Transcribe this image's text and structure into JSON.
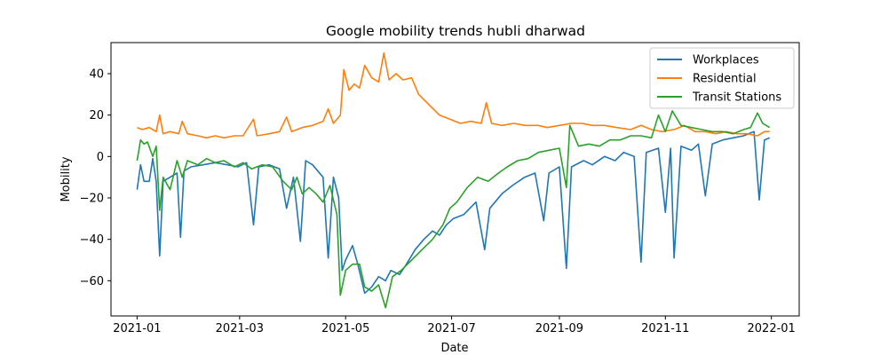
{
  "chart_data": {
    "type": "line",
    "title": "Google mobility trends hubli dharwad",
    "xlabel": "Date",
    "ylabel": "Mobility",
    "xlim": [
      "2020-12-17",
      "2022-01-17"
    ],
    "ylim": [
      -77,
      55
    ],
    "x_ticks": [
      "2021-01",
      "2021-03",
      "2021-05",
      "2021-07",
      "2021-09",
      "2021-11",
      "2022-01"
    ],
    "y_ticks": [
      -60,
      -40,
      -20,
      0,
      20,
      40
    ],
    "grid": false,
    "legend_position": "top-right",
    "series": [
      {
        "name": "Workplaces",
        "color": "#1f77b4",
        "points": [
          [
            "2021-01-01",
            -16
          ],
          [
            "2021-01-03",
            -4
          ],
          [
            "2021-01-05",
            -12
          ],
          [
            "2021-01-08",
            -12
          ],
          [
            "2021-01-10",
            -1
          ],
          [
            "2021-01-12",
            -12
          ],
          [
            "2021-01-14",
            -48
          ],
          [
            "2021-01-16",
            -12
          ],
          [
            "2021-01-20",
            -10
          ],
          [
            "2021-01-24",
            -8
          ],
          [
            "2021-01-26",
            -39
          ],
          [
            "2021-01-28",
            -7
          ],
          [
            "2021-02-01",
            -5
          ],
          [
            "2021-02-08",
            -4
          ],
          [
            "2021-02-15",
            -3
          ],
          [
            "2021-02-22",
            -4
          ],
          [
            "2021-02-28",
            -5
          ],
          [
            "2021-03-05",
            -3
          ],
          [
            "2021-03-09",
            -33
          ],
          [
            "2021-03-12",
            -5
          ],
          [
            "2021-03-18",
            -4
          ],
          [
            "2021-03-24",
            -6
          ],
          [
            "2021-03-28",
            -25
          ],
          [
            "2021-04-01",
            -10
          ],
          [
            "2021-04-05",
            -41
          ],
          [
            "2021-04-08",
            -2
          ],
          [
            "2021-04-12",
            -4
          ],
          [
            "2021-04-18",
            -10
          ],
          [
            "2021-04-21",
            -49
          ],
          [
            "2021-04-24",
            -10
          ],
          [
            "2021-04-27",
            -20
          ],
          [
            "2021-04-29",
            -55
          ],
          [
            "2021-05-01",
            -50
          ],
          [
            "2021-05-05",
            -43
          ],
          [
            "2021-05-08",
            -52
          ],
          [
            "2021-05-12",
            -66
          ],
          [
            "2021-05-16",
            -63
          ],
          [
            "2021-05-20",
            -58
          ],
          [
            "2021-05-24",
            -60
          ],
          [
            "2021-05-27",
            -55
          ],
          [
            "2021-06-01",
            -57
          ],
          [
            "2021-06-05",
            -52
          ],
          [
            "2021-06-10",
            -45
          ],
          [
            "2021-06-15",
            -40
          ],
          [
            "2021-06-20",
            -36
          ],
          [
            "2021-06-24",
            -38
          ],
          [
            "2021-06-28",
            -33
          ],
          [
            "2021-07-02",
            -30
          ],
          [
            "2021-07-08",
            -28
          ],
          [
            "2021-07-15",
            -22
          ],
          [
            "2021-07-20",
            -45
          ],
          [
            "2021-07-23",
            -25
          ],
          [
            "2021-07-30",
            -18
          ],
          [
            "2021-08-05",
            -14
          ],
          [
            "2021-08-12",
            -10
          ],
          [
            "2021-08-18",
            -8
          ],
          [
            "2021-08-23",
            -31
          ],
          [
            "2021-08-26",
            -8
          ],
          [
            "2021-09-01",
            -5
          ],
          [
            "2021-09-05",
            -54
          ],
          [
            "2021-09-08",
            -5
          ],
          [
            "2021-09-15",
            -2
          ],
          [
            "2021-09-20",
            -4
          ],
          [
            "2021-09-27",
            0
          ],
          [
            "2021-10-03",
            -2
          ],
          [
            "2021-10-08",
            2
          ],
          [
            "2021-10-14",
            0
          ],
          [
            "2021-10-18",
            -51
          ],
          [
            "2021-10-21",
            2
          ],
          [
            "2021-10-28",
            4
          ],
          [
            "2021-11-01",
            -27
          ],
          [
            "2021-11-04",
            4
          ],
          [
            "2021-11-06",
            -49
          ],
          [
            "2021-11-10",
            5
          ],
          [
            "2021-11-16",
            3
          ],
          [
            "2021-11-20",
            6
          ],
          [
            "2021-11-24",
            -19
          ],
          [
            "2021-11-28",
            6
          ],
          [
            "2021-12-04",
            8
          ],
          [
            "2021-12-10",
            9
          ],
          [
            "2021-12-16",
            10
          ],
          [
            "2021-12-22",
            12
          ],
          [
            "2021-12-25",
            -21
          ],
          [
            "2021-12-28",
            8
          ],
          [
            "2021-12-31",
            9
          ]
        ]
      },
      {
        "name": "Residential",
        "color": "#ff7f0e",
        "points": [
          [
            "2021-01-01",
            14
          ],
          [
            "2021-01-04",
            13
          ],
          [
            "2021-01-08",
            14
          ],
          [
            "2021-01-12",
            12
          ],
          [
            "2021-01-14",
            20
          ],
          [
            "2021-01-16",
            11
          ],
          [
            "2021-01-20",
            12
          ],
          [
            "2021-01-25",
            11
          ],
          [
            "2021-01-27",
            17
          ],
          [
            "2021-01-30",
            11
          ],
          [
            "2021-02-05",
            10
          ],
          [
            "2021-02-10",
            9
          ],
          [
            "2021-02-15",
            10
          ],
          [
            "2021-02-20",
            9
          ],
          [
            "2021-02-26",
            10
          ],
          [
            "2021-03-03",
            10
          ],
          [
            "2021-03-09",
            18
          ],
          [
            "2021-03-11",
            10
          ],
          [
            "2021-03-18",
            11
          ],
          [
            "2021-03-24",
            12
          ],
          [
            "2021-03-28",
            19
          ],
          [
            "2021-03-31",
            12
          ],
          [
            "2021-04-06",
            14
          ],
          [
            "2021-04-12",
            15
          ],
          [
            "2021-04-18",
            17
          ],
          [
            "2021-04-21",
            23
          ],
          [
            "2021-04-24",
            16
          ],
          [
            "2021-04-28",
            20
          ],
          [
            "2021-04-30",
            42
          ],
          [
            "2021-05-03",
            32
          ],
          [
            "2021-05-06",
            35
          ],
          [
            "2021-05-09",
            33
          ],
          [
            "2021-05-12",
            44
          ],
          [
            "2021-05-16",
            38
          ],
          [
            "2021-05-20",
            36
          ],
          [
            "2021-05-23",
            50
          ],
          [
            "2021-05-26",
            37
          ],
          [
            "2021-05-30",
            40
          ],
          [
            "2021-06-03",
            37
          ],
          [
            "2021-06-08",
            38
          ],
          [
            "2021-06-12",
            30
          ],
          [
            "2021-06-18",
            25
          ],
          [
            "2021-06-24",
            20
          ],
          [
            "2021-06-30",
            18
          ],
          [
            "2021-07-06",
            16
          ],
          [
            "2021-07-12",
            17
          ],
          [
            "2021-07-18",
            16
          ],
          [
            "2021-07-21",
            26
          ],
          [
            "2021-07-24",
            16
          ],
          [
            "2021-07-30",
            15
          ],
          [
            "2021-08-06",
            16
          ],
          [
            "2021-08-12",
            15
          ],
          [
            "2021-08-20",
            15
          ],
          [
            "2021-08-25",
            14
          ],
          [
            "2021-09-01",
            15
          ],
          [
            "2021-09-08",
            16
          ],
          [
            "2021-09-14",
            16
          ],
          [
            "2021-09-20",
            15
          ],
          [
            "2021-09-27",
            15
          ],
          [
            "2021-10-04",
            14
          ],
          [
            "2021-10-12",
            13
          ],
          [
            "2021-10-18",
            15
          ],
          [
            "2021-10-24",
            13
          ],
          [
            "2021-10-30",
            12
          ],
          [
            "2021-11-06",
            13
          ],
          [
            "2021-11-12",
            15
          ],
          [
            "2021-11-18",
            12
          ],
          [
            "2021-11-24",
            12
          ],
          [
            "2021-11-30",
            11
          ],
          [
            "2021-12-06",
            12
          ],
          [
            "2021-12-12",
            11
          ],
          [
            "2021-12-18",
            11
          ],
          [
            "2021-12-24",
            10
          ],
          [
            "2021-12-28",
            12
          ],
          [
            "2021-12-31",
            12
          ]
        ]
      },
      {
        "name": "Transit Stations",
        "color": "#2ca02c",
        "points": [
          [
            "2021-01-01",
            -2
          ],
          [
            "2021-01-03",
            8
          ],
          [
            "2021-01-05",
            6
          ],
          [
            "2021-01-07",
            7
          ],
          [
            "2021-01-10",
            0
          ],
          [
            "2021-01-12",
            5
          ],
          [
            "2021-01-14",
            -26
          ],
          [
            "2021-01-16",
            -10
          ],
          [
            "2021-01-20",
            -16
          ],
          [
            "2021-01-24",
            -2
          ],
          [
            "2021-01-27",
            -10
          ],
          [
            "2021-01-30",
            -2
          ],
          [
            "2021-02-05",
            -4
          ],
          [
            "2021-02-10",
            -1
          ],
          [
            "2021-02-15",
            -3
          ],
          [
            "2021-02-20",
            -2
          ],
          [
            "2021-02-26",
            -5
          ],
          [
            "2021-03-03",
            -3
          ],
          [
            "2021-03-08",
            -6
          ],
          [
            "2021-03-14",
            -4
          ],
          [
            "2021-03-20",
            -5
          ],
          [
            "2021-03-26",
            -12
          ],
          [
            "2021-03-31",
            -16
          ],
          [
            "2021-04-03",
            -10
          ],
          [
            "2021-04-06",
            -18
          ],
          [
            "2021-04-10",
            -15
          ],
          [
            "2021-04-14",
            -18
          ],
          [
            "2021-04-18",
            -22
          ],
          [
            "2021-04-22",
            -14
          ],
          [
            "2021-04-26",
            -28
          ],
          [
            "2021-04-28",
            -67
          ],
          [
            "2021-05-01",
            -55
          ],
          [
            "2021-05-05",
            -52
          ],
          [
            "2021-05-09",
            -52
          ],
          [
            "2021-05-12",
            -63
          ],
          [
            "2021-05-16",
            -65
          ],
          [
            "2021-05-20",
            -62
          ],
          [
            "2021-05-24",
            -73
          ],
          [
            "2021-05-28",
            -58
          ],
          [
            "2021-06-02",
            -55
          ],
          [
            "2021-06-08",
            -50
          ],
          [
            "2021-06-14",
            -45
          ],
          [
            "2021-06-20",
            -40
          ],
          [
            "2021-06-26",
            -33
          ],
          [
            "2021-06-30",
            -25
          ],
          [
            "2021-07-04",
            -22
          ],
          [
            "2021-07-10",
            -15
          ],
          [
            "2021-07-16",
            -10
          ],
          [
            "2021-07-22",
            -12
          ],
          [
            "2021-07-28",
            -8
          ],
          [
            "2021-08-02",
            -5
          ],
          [
            "2021-08-08",
            -2
          ],
          [
            "2021-08-14",
            -1
          ],
          [
            "2021-08-20",
            2
          ],
          [
            "2021-08-26",
            3
          ],
          [
            "2021-09-01",
            4
          ],
          [
            "2021-09-05",
            -15
          ],
          [
            "2021-09-07",
            15
          ],
          [
            "2021-09-12",
            5
          ],
          [
            "2021-09-18",
            6
          ],
          [
            "2021-09-24",
            5
          ],
          [
            "2021-09-30",
            8
          ],
          [
            "2021-10-06",
            8
          ],
          [
            "2021-10-12",
            10
          ],
          [
            "2021-10-18",
            10
          ],
          [
            "2021-10-24",
            9
          ],
          [
            "2021-10-28",
            20
          ],
          [
            "2021-11-01",
            12
          ],
          [
            "2021-11-05",
            22
          ],
          [
            "2021-11-10",
            15
          ],
          [
            "2021-11-16",
            14
          ],
          [
            "2021-11-22",
            13
          ],
          [
            "2021-11-28",
            12
          ],
          [
            "2021-12-04",
            12
          ],
          [
            "2021-12-10",
            11
          ],
          [
            "2021-12-16",
            13
          ],
          [
            "2021-12-20",
            14
          ],
          [
            "2021-12-24",
            21
          ],
          [
            "2021-12-27",
            16
          ],
          [
            "2021-12-31",
            14
          ]
        ]
      }
    ]
  }
}
